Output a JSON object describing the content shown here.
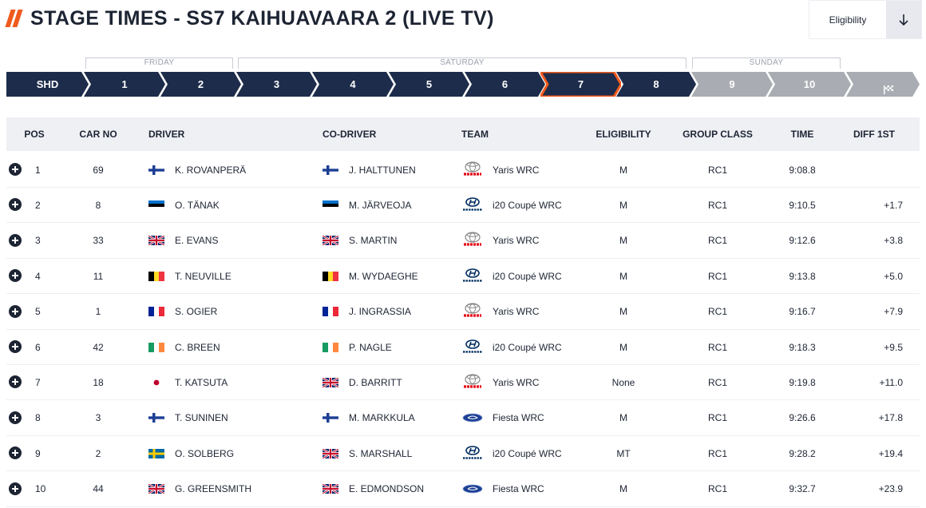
{
  "title": "STAGE TIMES - SS7 KAIHUAVAARA 2 (LIVE TV)",
  "filter": {
    "label": "Eligibility",
    "icon": "arrow-down-icon"
  },
  "days": [
    "FRIDAY",
    "SATURDAY",
    "SUNDAY"
  ],
  "stages": [
    "SHD",
    "1",
    "2",
    "3",
    "4",
    "5",
    "6",
    "7",
    "8",
    "9",
    "10"
  ],
  "active_stage": "7",
  "finish_icon": "finish-flag-icon",
  "colors": {
    "accent": "#f05a1e",
    "navy": "#1d2c4a",
    "future": "#a9acb2"
  },
  "columns": [
    "POS",
    "CAR NO",
    "DRIVER",
    "CO-DRIVER",
    "TEAM",
    "ELIGIBILITY",
    "GROUP CLASS",
    "TIME",
    "DIFF 1ST"
  ],
  "rows": [
    {
      "pos": "1",
      "car": "69",
      "driver": "K. ROVANPERÄ",
      "driver_flag": "FIN",
      "codriver": "J. HALTTUNEN",
      "codriver_flag": "FIN",
      "team_logo": "toyota",
      "team": "Yaris WRC",
      "elig": "M",
      "group": "RC1",
      "time": "9:08.8",
      "diff": ""
    },
    {
      "pos": "2",
      "car": "8",
      "driver": "O. TÄNAK",
      "driver_flag": "EST",
      "codriver": "M. JÄRVEOJA",
      "codriver_flag": "EST",
      "team_logo": "hyundai",
      "team": "i20 Coupé WRC",
      "elig": "M",
      "group": "RC1",
      "time": "9:10.5",
      "diff": "+1.7"
    },
    {
      "pos": "3",
      "car": "33",
      "driver": "E. EVANS",
      "driver_flag": "GBR",
      "codriver": "S. MARTIN",
      "codriver_flag": "GBR",
      "team_logo": "toyota",
      "team": "Yaris WRC",
      "elig": "M",
      "group": "RC1",
      "time": "9:12.6",
      "diff": "+3.8"
    },
    {
      "pos": "4",
      "car": "11",
      "driver": "T. NEUVILLE",
      "driver_flag": "BEL",
      "codriver": "M. WYDAEGHE",
      "codriver_flag": "BEL",
      "team_logo": "hyundai",
      "team": "i20 Coupé WRC",
      "elig": "M",
      "group": "RC1",
      "time": "9:13.8",
      "diff": "+5.0"
    },
    {
      "pos": "5",
      "car": "1",
      "driver": "S. OGIER",
      "driver_flag": "FRA",
      "codriver": "J. INGRASSIA",
      "codriver_flag": "FRA",
      "team_logo": "toyota",
      "team": "Yaris WRC",
      "elig": "M",
      "group": "RC1",
      "time": "9:16.7",
      "diff": "+7.9"
    },
    {
      "pos": "6",
      "car": "42",
      "driver": "C. BREEN",
      "driver_flag": "IRL",
      "codriver": "P. NAGLE",
      "codriver_flag": "IRL",
      "team_logo": "hyundai",
      "team": "i20 Coupé WRC",
      "elig": "M",
      "group": "RC1",
      "time": "9:18.3",
      "diff": "+9.5"
    },
    {
      "pos": "7",
      "car": "18",
      "driver": "T. KATSUTA",
      "driver_flag": "JPN",
      "codriver": "D. BARRITT",
      "codriver_flag": "GBR",
      "team_logo": "toyota",
      "team": "Yaris WRC",
      "elig": "None",
      "group": "RC1",
      "time": "9:19.8",
      "diff": "+11.0"
    },
    {
      "pos": "8",
      "car": "3",
      "driver": "T. SUNINEN",
      "driver_flag": "FIN",
      "codriver": "M. MARKKULA",
      "codriver_flag": "FIN",
      "team_logo": "ford",
      "team": "Fiesta WRC",
      "elig": "M",
      "group": "RC1",
      "time": "9:26.6",
      "diff": "+17.8"
    },
    {
      "pos": "9",
      "car": "2",
      "driver": "O. SOLBERG",
      "driver_flag": "SWE",
      "codriver": "S. MARSHALL",
      "codriver_flag": "GBR",
      "team_logo": "hyundai",
      "team": "i20 Coupé WRC",
      "elig": "MT",
      "group": "RC1",
      "time": "9:28.2",
      "diff": "+19.4"
    },
    {
      "pos": "10",
      "car": "44",
      "driver": "G. GREENSMITH",
      "driver_flag": "GBR",
      "codriver": "E. EDMONDSON",
      "codriver_flag": "GBR",
      "team_logo": "ford",
      "team": "Fiesta WRC",
      "elig": "M",
      "group": "RC1",
      "time": "9:32.7",
      "diff": "+23.9"
    }
  ]
}
